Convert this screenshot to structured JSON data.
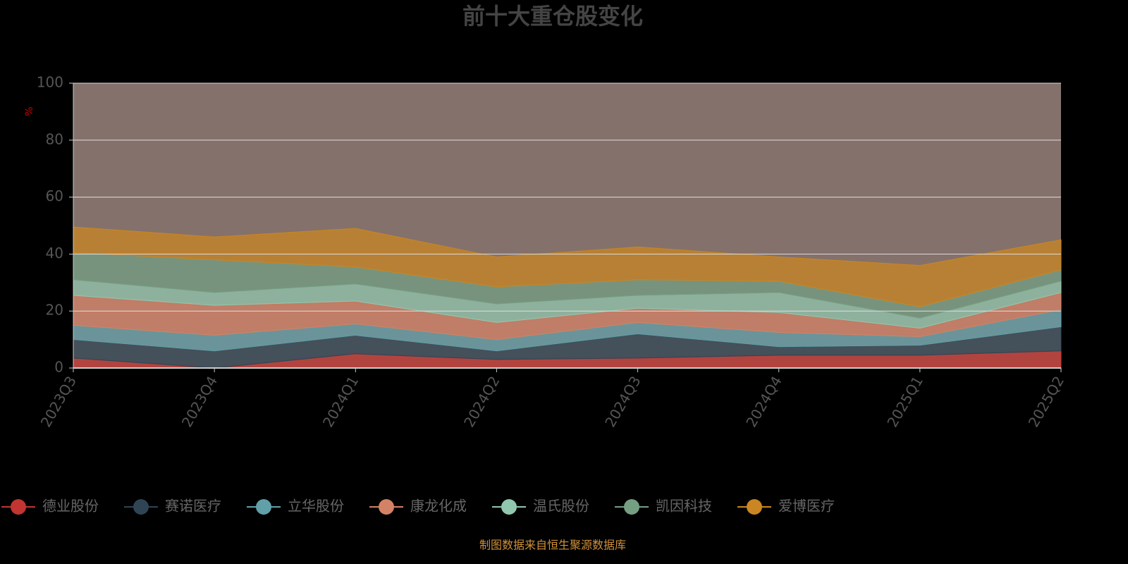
{
  "chart_data": {
    "type": "stacked-area",
    "title": "前十大重仓股变化",
    "y_label": "%",
    "categories": [
      "2023Q3",
      "2023Q4",
      "2024Q1",
      "2024Q2",
      "2024Q3",
      "2024Q4",
      "2025Q1",
      "2025Q2"
    ],
    "series": [
      {
        "name": "德业股份",
        "color": "#c23531",
        "values": [
          3.5,
          0,
          5,
          3,
          3.5,
          4.5,
          4.5,
          6
        ]
      },
      {
        "name": "赛诺医疗",
        "color": "#2f4554",
        "values": [
          6.5,
          6,
          6.5,
          3,
          8.5,
          3,
          3.5,
          8.5
        ]
      },
      {
        "name": "立华股份",
        "color": "#61a0a8",
        "values": [
          5,
          5.5,
          4,
          4,
          4,
          5,
          3,
          6
        ]
      },
      {
        "name": "康龙化成",
        "color": "#d48265",
        "values": [
          10.5,
          10.5,
          8,
          6,
          5,
          7,
          3,
          6
        ]
      },
      {
        "name": "温氏股份",
        "color": "#91c7ae",
        "values": [
          5.5,
          4.5,
          6,
          6.5,
          4.5,
          7,
          3.5,
          4
        ]
      },
      {
        "name": "凯因科技",
        "color": "#749f83",
        "values": [
          9.5,
          11.5,
          6,
          6,
          5.5,
          4,
          4,
          4
        ]
      },
      {
        "name": "爱博医疗",
        "color": "#ca8622",
        "values": [
          9,
          8,
          13.5,
          10.5,
          11.5,
          8.5,
          14.5,
          10.5
        ]
      }
    ],
    "ylim": [
      0,
      100
    ],
    "yticks": [
      0,
      20,
      40,
      60,
      80,
      100
    ],
    "grid": true,
    "footer": "制图数据来自恒生聚源数据库"
  }
}
